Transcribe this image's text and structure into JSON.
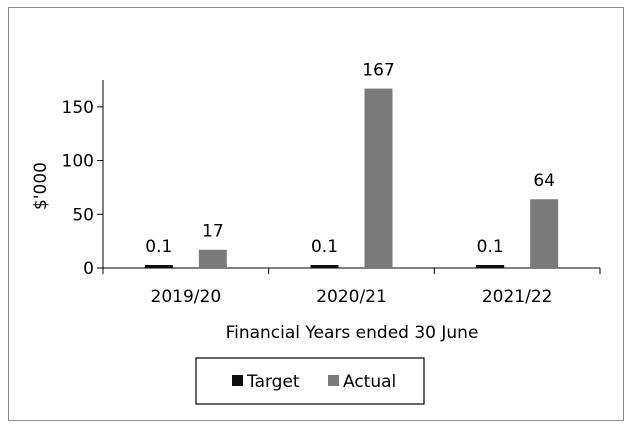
{
  "chart_data": {
    "type": "bar",
    "categories": [
      "2019/20",
      "2020/21",
      "2021/22"
    ],
    "series": [
      {
        "name": "Target",
        "values": [
          0.1,
          0.1,
          0.1
        ],
        "labels": [
          "0.1",
          "0.1",
          "0.1"
        ],
        "color": "#0d0d0d"
      },
      {
        "name": "Actual",
        "values": [
          17,
          167,
          64
        ],
        "labels": [
          "17",
          "167",
          "64"
        ],
        "color": "#7a7a7a"
      }
    ],
    "yticks": [
      0,
      50,
      100,
      150
    ],
    "ylim": [
      0,
      175
    ],
    "xlabel": "Financial Years ended 30 June",
    "ylabel": "$'000",
    "grid": false,
    "legend_position": "bottom"
  }
}
